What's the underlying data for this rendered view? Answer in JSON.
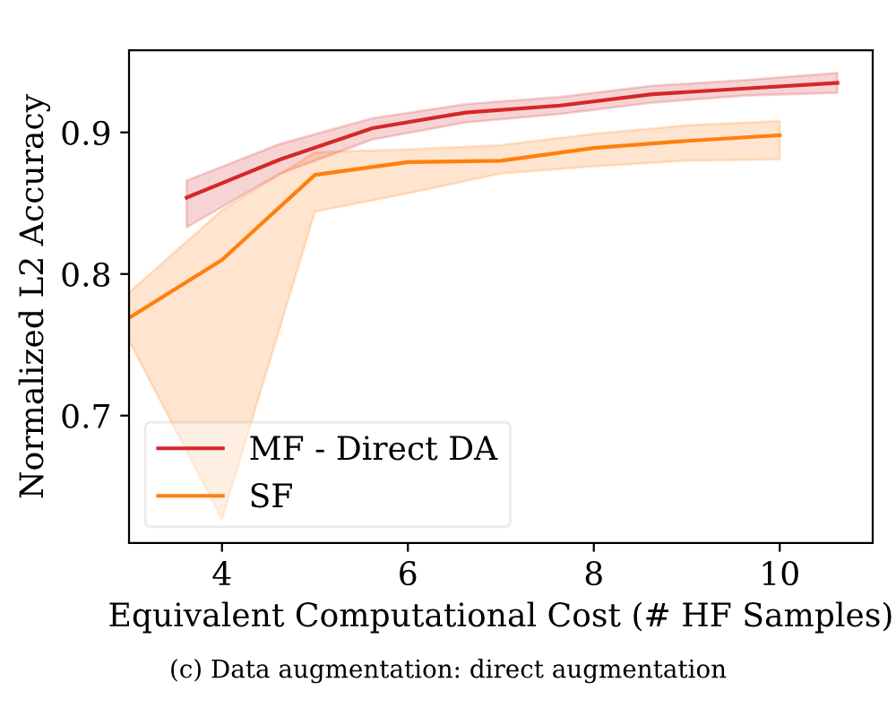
{
  "chart_data": {
    "type": "line",
    "xlabel": "Equivalent Computational Cost (# HF Samples)",
    "ylabel": "Normalized L2 Accuracy",
    "xlim": [
      3.0,
      11.0
    ],
    "ylim": [
      0.61,
      0.958
    ],
    "xticks": [
      4,
      6,
      8,
      10
    ],
    "yticks": [
      0.7,
      0.8,
      0.9
    ],
    "grid": false,
    "legend": "bottom left",
    "marker": "none",
    "line_style": "solid",
    "annotations": [
      "(c) Data augmentation: direct augmentation"
    ],
    "series": [
      {
        "name": "MF - Direct DA",
        "color": "#d62728",
        "x": [
          3.62,
          4.63,
          5.62,
          6.62,
          7.64,
          8.63,
          9.63,
          10.62
        ],
        "values": [
          0.854,
          0.881,
          0.903,
          0.914,
          0.919,
          0.927,
          0.931,
          0.935
        ],
        "lower": [
          0.833,
          0.871,
          0.895,
          0.907,
          0.913,
          0.921,
          0.926,
          0.928
        ],
        "upper": [
          0.866,
          0.892,
          0.91,
          0.92,
          0.925,
          0.933,
          0.937,
          0.942
        ]
      },
      {
        "name": "SF",
        "color": "#ff7f0e",
        "x": [
          3,
          4,
          5,
          6,
          7,
          8,
          9,
          10
        ],
        "values": [
          0.769,
          0.81,
          0.87,
          0.879,
          0.88,
          0.889,
          0.894,
          0.898
        ],
        "lower": [
          0.753,
          0.627,
          0.844,
          0.857,
          0.871,
          0.876,
          0.88,
          0.881
        ],
        "upper": [
          0.787,
          0.845,
          0.886,
          0.888,
          0.891,
          0.899,
          0.905,
          0.908
        ]
      }
    ]
  }
}
